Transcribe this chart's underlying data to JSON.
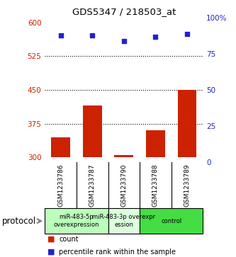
{
  "title": "GDS5347 / 218503_at",
  "samples": [
    "GSM1233786",
    "GSM1233787",
    "GSM1233790",
    "GSM1233788",
    "GSM1233789"
  ],
  "counts": [
    345,
    415,
    305,
    360,
    450
  ],
  "percentiles": [
    88,
    88,
    84,
    87,
    89
  ],
  "ylim_left": [
    290,
    610
  ],
  "ylim_right": [
    0,
    100
  ],
  "yticks_left": [
    300,
    375,
    450,
    525,
    600
  ],
  "yticks_right": [
    0,
    25,
    50,
    75,
    100
  ],
  "hlines": [
    375,
    450,
    525
  ],
  "bar_color": "#cc2200",
  "dot_color": "#2222cc",
  "bar_bottom": 300,
  "groups": [
    {
      "label": "miR-483-5p\noverexpression",
      "samples": [
        0,
        1
      ],
      "color": "#bbffbb"
    },
    {
      "label": "miR-483-3p overexpr\nession",
      "samples": [
        2
      ],
      "color": "#ddffdd"
    },
    {
      "label": "control",
      "samples": [
        3,
        4
      ],
      "color": "#44dd44"
    }
  ],
  "protocol_label": "protocol",
  "legend_count_label": "count",
  "legend_pct_label": "percentile rank within the sample",
  "sample_bg_color": "#c8c8c8",
  "plot_bg": "#ffffff",
  "axis_label_color": "#333333"
}
